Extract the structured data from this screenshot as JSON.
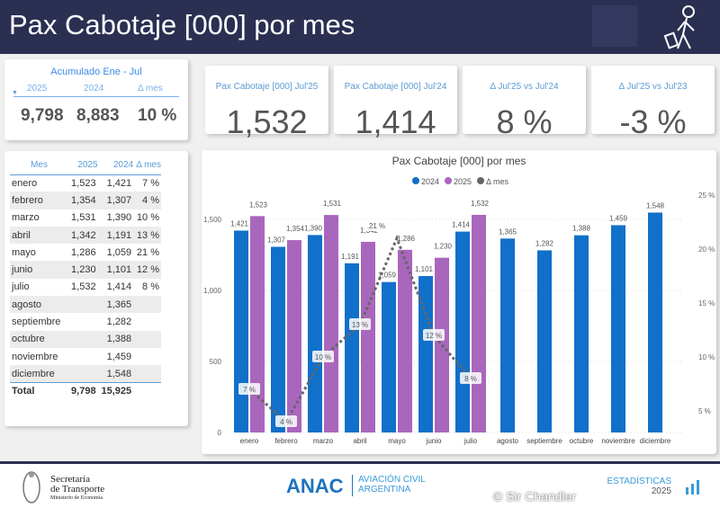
{
  "header": {
    "title": "Pax Cabotaje [000] por mes"
  },
  "accum": {
    "title": "Acumulado Ene - Jul",
    "col_2025": "2025",
    "col_2024": "2024",
    "col_delta": "Δ mes",
    "v2025": "9,798",
    "v2024": "8,883",
    "delta": "10 %"
  },
  "kpis": [
    {
      "label": "Pax Cabotaje [000] Jul'25",
      "value": "1,532"
    },
    {
      "label": "Pax Cabotaje [000] Jul'24",
      "value": "1,414"
    },
    {
      "label": "Δ Jul'25 vs Jul'24",
      "value": "8 %"
    },
    {
      "label": "Δ Jul'25 vs Jul'23",
      "value": "-3 %"
    }
  ],
  "table": {
    "headers": [
      "Mes",
      "2025",
      "2024",
      "Δ mes"
    ],
    "rows": [
      [
        "enero",
        "1,523",
        "1,421",
        "7 %"
      ],
      [
        "febrero",
        "1,354",
        "1,307",
        "4 %"
      ],
      [
        "marzo",
        "1,531",
        "1,390",
        "10 %"
      ],
      [
        "abril",
        "1,342",
        "1,191",
        "13 %"
      ],
      [
        "mayo",
        "1,286",
        "1,059",
        "21 %"
      ],
      [
        "junio",
        "1,230",
        "1,101",
        "12 %"
      ],
      [
        "julio",
        "1,532",
        "1,414",
        "8 %"
      ],
      [
        "agosto",
        "",
        "1,365",
        ""
      ],
      [
        "septiembre",
        "",
        "1,282",
        ""
      ],
      [
        "octubre",
        "",
        "1,388",
        ""
      ],
      [
        "noviembre",
        "",
        "1,459",
        ""
      ],
      [
        "diciembre",
        "",
        "1,548",
        ""
      ]
    ],
    "total": [
      "Total",
      "9,798",
      "15,925",
      ""
    ]
  },
  "chart_data": {
    "type": "bar",
    "title": "Pax Cabotaje [000] por mes",
    "categories": [
      "enero",
      "febrero",
      "marzo",
      "abril",
      "mayo",
      "junio",
      "julio",
      "agosto",
      "septiembre",
      "octubre",
      "noviembre",
      "diciembre"
    ],
    "series": [
      {
        "name": "2024",
        "color": "#1170c9",
        "values": [
          1421,
          1307,
          1390,
          1191,
          1059,
          1101,
          1414,
          1365,
          1282,
          1388,
          1459,
          1548
        ]
      },
      {
        "name": "2025",
        "color": "#a966bd",
        "values": [
          1523,
          1354,
          1531,
          1342,
          1286,
          1230,
          1532,
          null,
          null,
          null,
          null,
          null
        ]
      },
      {
        "name": "Δ mes",
        "color": "#666666",
        "type": "line",
        "axis": "right",
        "values": [
          7,
          4,
          10,
          13,
          21,
          12,
          8,
          null,
          null,
          null,
          null,
          null
        ]
      }
    ],
    "ylim": [
      0,
      1600
    ],
    "yticks": [
      "0",
      "500",
      "1,000",
      "1,500"
    ],
    "y2lim": [
      0,
      25
    ],
    "y2ticks": [
      "5 %",
      "10 %",
      "15 %",
      "20 %",
      "25 %"
    ],
    "legend": "top"
  },
  "footer": {
    "sec1": "Secretaría",
    "sec2": "de Transporte",
    "sec3": "Ministerio de Economía",
    "anac": "ANAC",
    "anac2": "AVIACIÓN CIVIL",
    "anac3": "ARGENTINA",
    "est": "ESTADÍSTICAS",
    "year": "2025",
    "wm": "© Sir Chandler"
  }
}
